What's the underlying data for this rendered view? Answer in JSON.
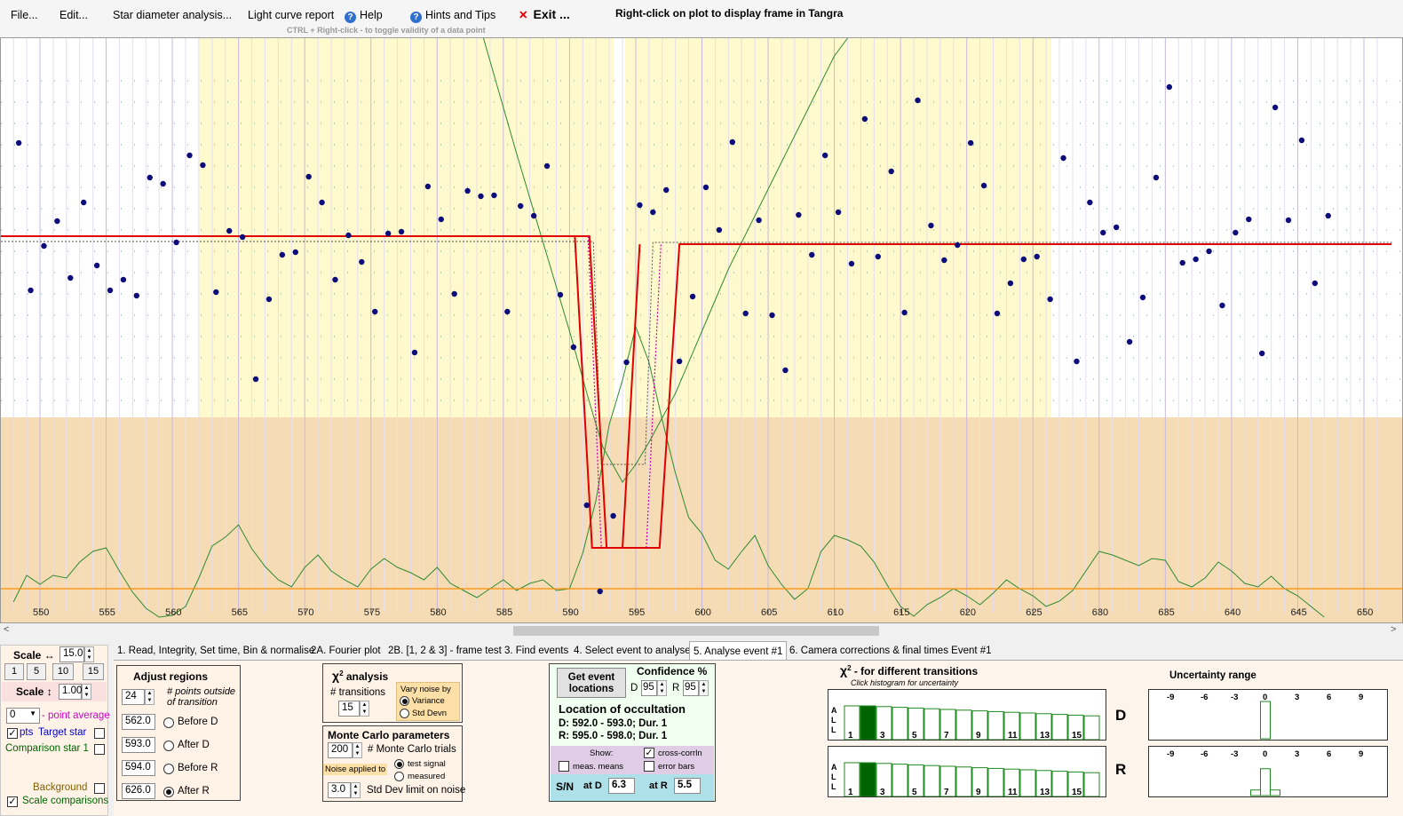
{
  "menu": {
    "file": "File...",
    "edit": "Edit...",
    "star_diameter": "Star diameter analysis...",
    "light_curve_report": "Light curve report",
    "help": "Help",
    "hints": "Hints and Tips",
    "exit": "Exit ...",
    "right_click_hint": "Right-click on plot to display frame in Tangra",
    "ctrl_hint": "CTRL + Right-click  -  to toggle validity of a data point"
  },
  "plot": {
    "x_ticks": [
      "550",
      "555",
      "560",
      "565",
      "570",
      "575",
      "580",
      "585",
      "590",
      "595",
      "600",
      "605",
      "610",
      "615",
      "620",
      "625",
      "630",
      "635",
      "640",
      "645",
      "650"
    ]
  },
  "chart_data": {
    "type": "scatter",
    "x_range": [
      548,
      651
    ],
    "x_ticks": [
      550,
      555,
      560,
      565,
      570,
      575,
      580,
      585,
      590,
      595,
      600,
      605,
      610,
      615,
      620,
      625,
      630,
      635,
      640,
      645,
      650
    ],
    "points": [
      [
        548.4,
        118
      ],
      [
        549.3,
        284
      ],
      [
        550.3,
        234
      ],
      [
        551.3,
        206
      ],
      [
        552.3,
        270
      ],
      [
        553.3,
        185
      ],
      [
        554.3,
        256
      ],
      [
        555.3,
        284
      ],
      [
        556.3,
        272
      ],
      [
        557.3,
        290
      ],
      [
        558.3,
        157
      ],
      [
        559.3,
        164
      ],
      [
        560.3,
        230
      ],
      [
        561.3,
        132
      ],
      [
        562.3,
        143
      ],
      [
        563.3,
        286
      ],
      [
        564.3,
        217
      ],
      [
        565.3,
        224
      ],
      [
        566.3,
        384
      ],
      [
        567.3,
        294
      ],
      [
        568.3,
        244
      ],
      [
        569.3,
        241
      ],
      [
        570.3,
        156
      ],
      [
        571.3,
        185
      ],
      [
        572.3,
        272
      ],
      [
        573.3,
        222
      ],
      [
        574.3,
        252
      ],
      [
        575.3,
        308
      ],
      [
        576.3,
        220
      ],
      [
        577.3,
        218
      ],
      [
        578.3,
        354
      ],
      [
        579.3,
        167
      ],
      [
        580.3,
        204
      ],
      [
        581.3,
        288
      ],
      [
        582.3,
        172
      ],
      [
        583.3,
        178
      ],
      [
        584.3,
        177
      ],
      [
        585.3,
        308
      ],
      [
        586.3,
        189
      ],
      [
        587.3,
        200
      ],
      [
        588.3,
        144
      ],
      [
        589.3,
        289
      ],
      [
        590.3,
        348
      ],
      [
        591.3,
        526
      ],
      [
        592.3,
        623
      ],
      [
        593.3,
        538
      ],
      [
        594.3,
        365
      ],
      [
        595.3,
        188
      ],
      [
        596.3,
        196
      ],
      [
        597.3,
        171
      ],
      [
        598.3,
        364
      ],
      [
        599.3,
        291
      ],
      [
        600.3,
        168
      ],
      [
        601.3,
        216
      ],
      [
        602.3,
        117
      ],
      [
        603.3,
        310
      ],
      [
        604.3,
        205
      ],
      [
        605.3,
        312
      ],
      [
        606.3,
        374
      ],
      [
        607.3,
        199
      ],
      [
        608.3,
        244
      ],
      [
        609.3,
        132
      ],
      [
        610.3,
        196
      ],
      [
        611.3,
        254
      ],
      [
        612.3,
        91
      ],
      [
        613.3,
        246
      ],
      [
        614.3,
        150
      ],
      [
        615.3,
        309
      ],
      [
        616.3,
        70
      ],
      [
        617.3,
        211
      ],
      [
        618.3,
        250
      ],
      [
        619.3,
        233
      ],
      [
        620.3,
        118
      ],
      [
        621.3,
        166
      ],
      [
        622.3,
        310
      ],
      [
        623.3,
        276
      ],
      [
        624.3,
        249
      ],
      [
        625.3,
        246
      ],
      [
        626.3,
        294
      ],
      [
        627.3,
        135
      ],
      [
        628.3,
        364
      ],
      [
        629.3,
        185
      ],
      [
        630.3,
        219
      ],
      [
        631.3,
        213
      ],
      [
        632.3,
        342
      ],
      [
        633.3,
        292
      ],
      [
        634.3,
        157
      ],
      [
        635.3,
        55
      ],
      [
        636.3,
        253
      ],
      [
        637.3,
        249
      ],
      [
        638.3,
        240
      ],
      [
        639.3,
        301
      ],
      [
        640.3,
        219
      ],
      [
        641.3,
        204
      ],
      [
        642.3,
        355
      ],
      [
        643.3,
        78
      ],
      [
        644.3,
        205
      ],
      [
        645.3,
        115
      ],
      [
        646.3,
        276
      ],
      [
        647.3,
        200
      ]
    ],
    "annotations": [
      "Right-click on plot to display frame in Tangra"
    ]
  },
  "scale_panel": {
    "scale_h_label": "Scale ↔",
    "scale_h_value": "15.0",
    "preset_buttons": [
      "1",
      "5",
      "10",
      "15"
    ],
    "scale_v_label": "Scale ↕",
    "scale_v_value": "1.00",
    "point_avg_value": "0",
    "point_avg_label": "- point average",
    "pts_label": "pts",
    "target_star_label": "Target star",
    "comparison_label": "Comparison star 1",
    "background_label": "Background",
    "scale_comparisons_label": "Scale comparisons"
  },
  "tabs": [
    {
      "label": "1.  Read, Integrity, Set time, Bin & normalise"
    },
    {
      "label": "2A. Fourier plot"
    },
    {
      "label": "2B. [1, 2 & 3] - frame test"
    },
    {
      "label": "3. Find events"
    },
    {
      "label": "4. Select event to analyse"
    },
    {
      "label": "5. Analyse event #1"
    },
    {
      "label": "6. Camera corrections & final times Event #1"
    }
  ],
  "adjust_regions": {
    "title": "Adjust regions",
    "points_outside_value": "24",
    "points_outside_label1": "# points outside",
    "points_outside_label2": "of transition",
    "before_d_value": "562.0",
    "before_d_label": "Before D",
    "after_d_value": "593.0",
    "after_d_label": "After D",
    "before_r_value": "594.0",
    "before_r_label": "Before R",
    "after_r_value": "626.0",
    "after_r_label": "After R"
  },
  "chi2": {
    "title_chi": "χ",
    "title_sup": "2",
    "title_rest": " analysis",
    "transitions_label": "# transitions",
    "transitions_value": "15",
    "vary_noise_label": "Vary noise by",
    "variance_label": "Variance",
    "std_devn_label": "Std Devn"
  },
  "monte_carlo": {
    "title": "Monte Carlo parameters",
    "trials_value": "200",
    "trials_label": "# Monte Carlo trials",
    "noise_applied_label": "Noise applied to",
    "test_signal_label": "test signal",
    "measured_label": "measured",
    "limit_value": "3.0",
    "limit_label": "Std Dev limit on noise"
  },
  "event_panel": {
    "get_event_label": "Get event locations",
    "confidence_label": "Confidence %",
    "d_label": "D",
    "d_value": "95",
    "r_label": "R",
    "r_value": "95",
    "location_title": "Location of occultation",
    "d_line": "D: 592.0 - 593.0; Dur. 1",
    "r_line": "R: 595.0 - 598.0; Dur. 1",
    "show_label": "Show:",
    "cross_corr_label": "cross-corrln",
    "meas_means_label": "meas. means",
    "error_bars_label": "error bars",
    "sn_label": "S/N",
    "at_d_label": "at D",
    "at_d_value": "6.3",
    "at_r_label": "at R",
    "at_r_value": "5.5"
  },
  "chi2_hist": {
    "title_chi": "χ",
    "title_sup": "2",
    "title_rest": " - for different transitions",
    "subtitle": "Click histogram for uncertainty",
    "all_label": [
      "A",
      "L",
      "L"
    ],
    "x_labels": [
      "1",
      "3",
      "5",
      "7",
      "9",
      "11",
      "13",
      "15"
    ],
    "d_label": "D",
    "r_label": "R",
    "bars": [
      0.95,
      0.95,
      0.93,
      0.91,
      0.89,
      0.87,
      0.85,
      0.83,
      0.81,
      0.79,
      0.77,
      0.75,
      0.73,
      0.71,
      0.69,
      0.67
    ],
    "highlight_index": 1
  },
  "uncertainty": {
    "title": "Uncertainty range",
    "x_labels": [
      "-9",
      "-6",
      "-3",
      "0",
      "3",
      "6",
      "9"
    ],
    "d_bars": [
      0,
      1.0,
      0
    ],
    "r_bars": [
      0.15,
      0.72,
      0.15
    ]
  },
  "colors": {
    "yellow_region": "#fffacd",
    "tan_region": "#f5dcb5",
    "data_point": "#0c0c7a",
    "model_line": "#e00000",
    "green_line": "#2e8b2e",
    "orange_line": "#ff8c00",
    "hist_highlight": "#006400"
  }
}
